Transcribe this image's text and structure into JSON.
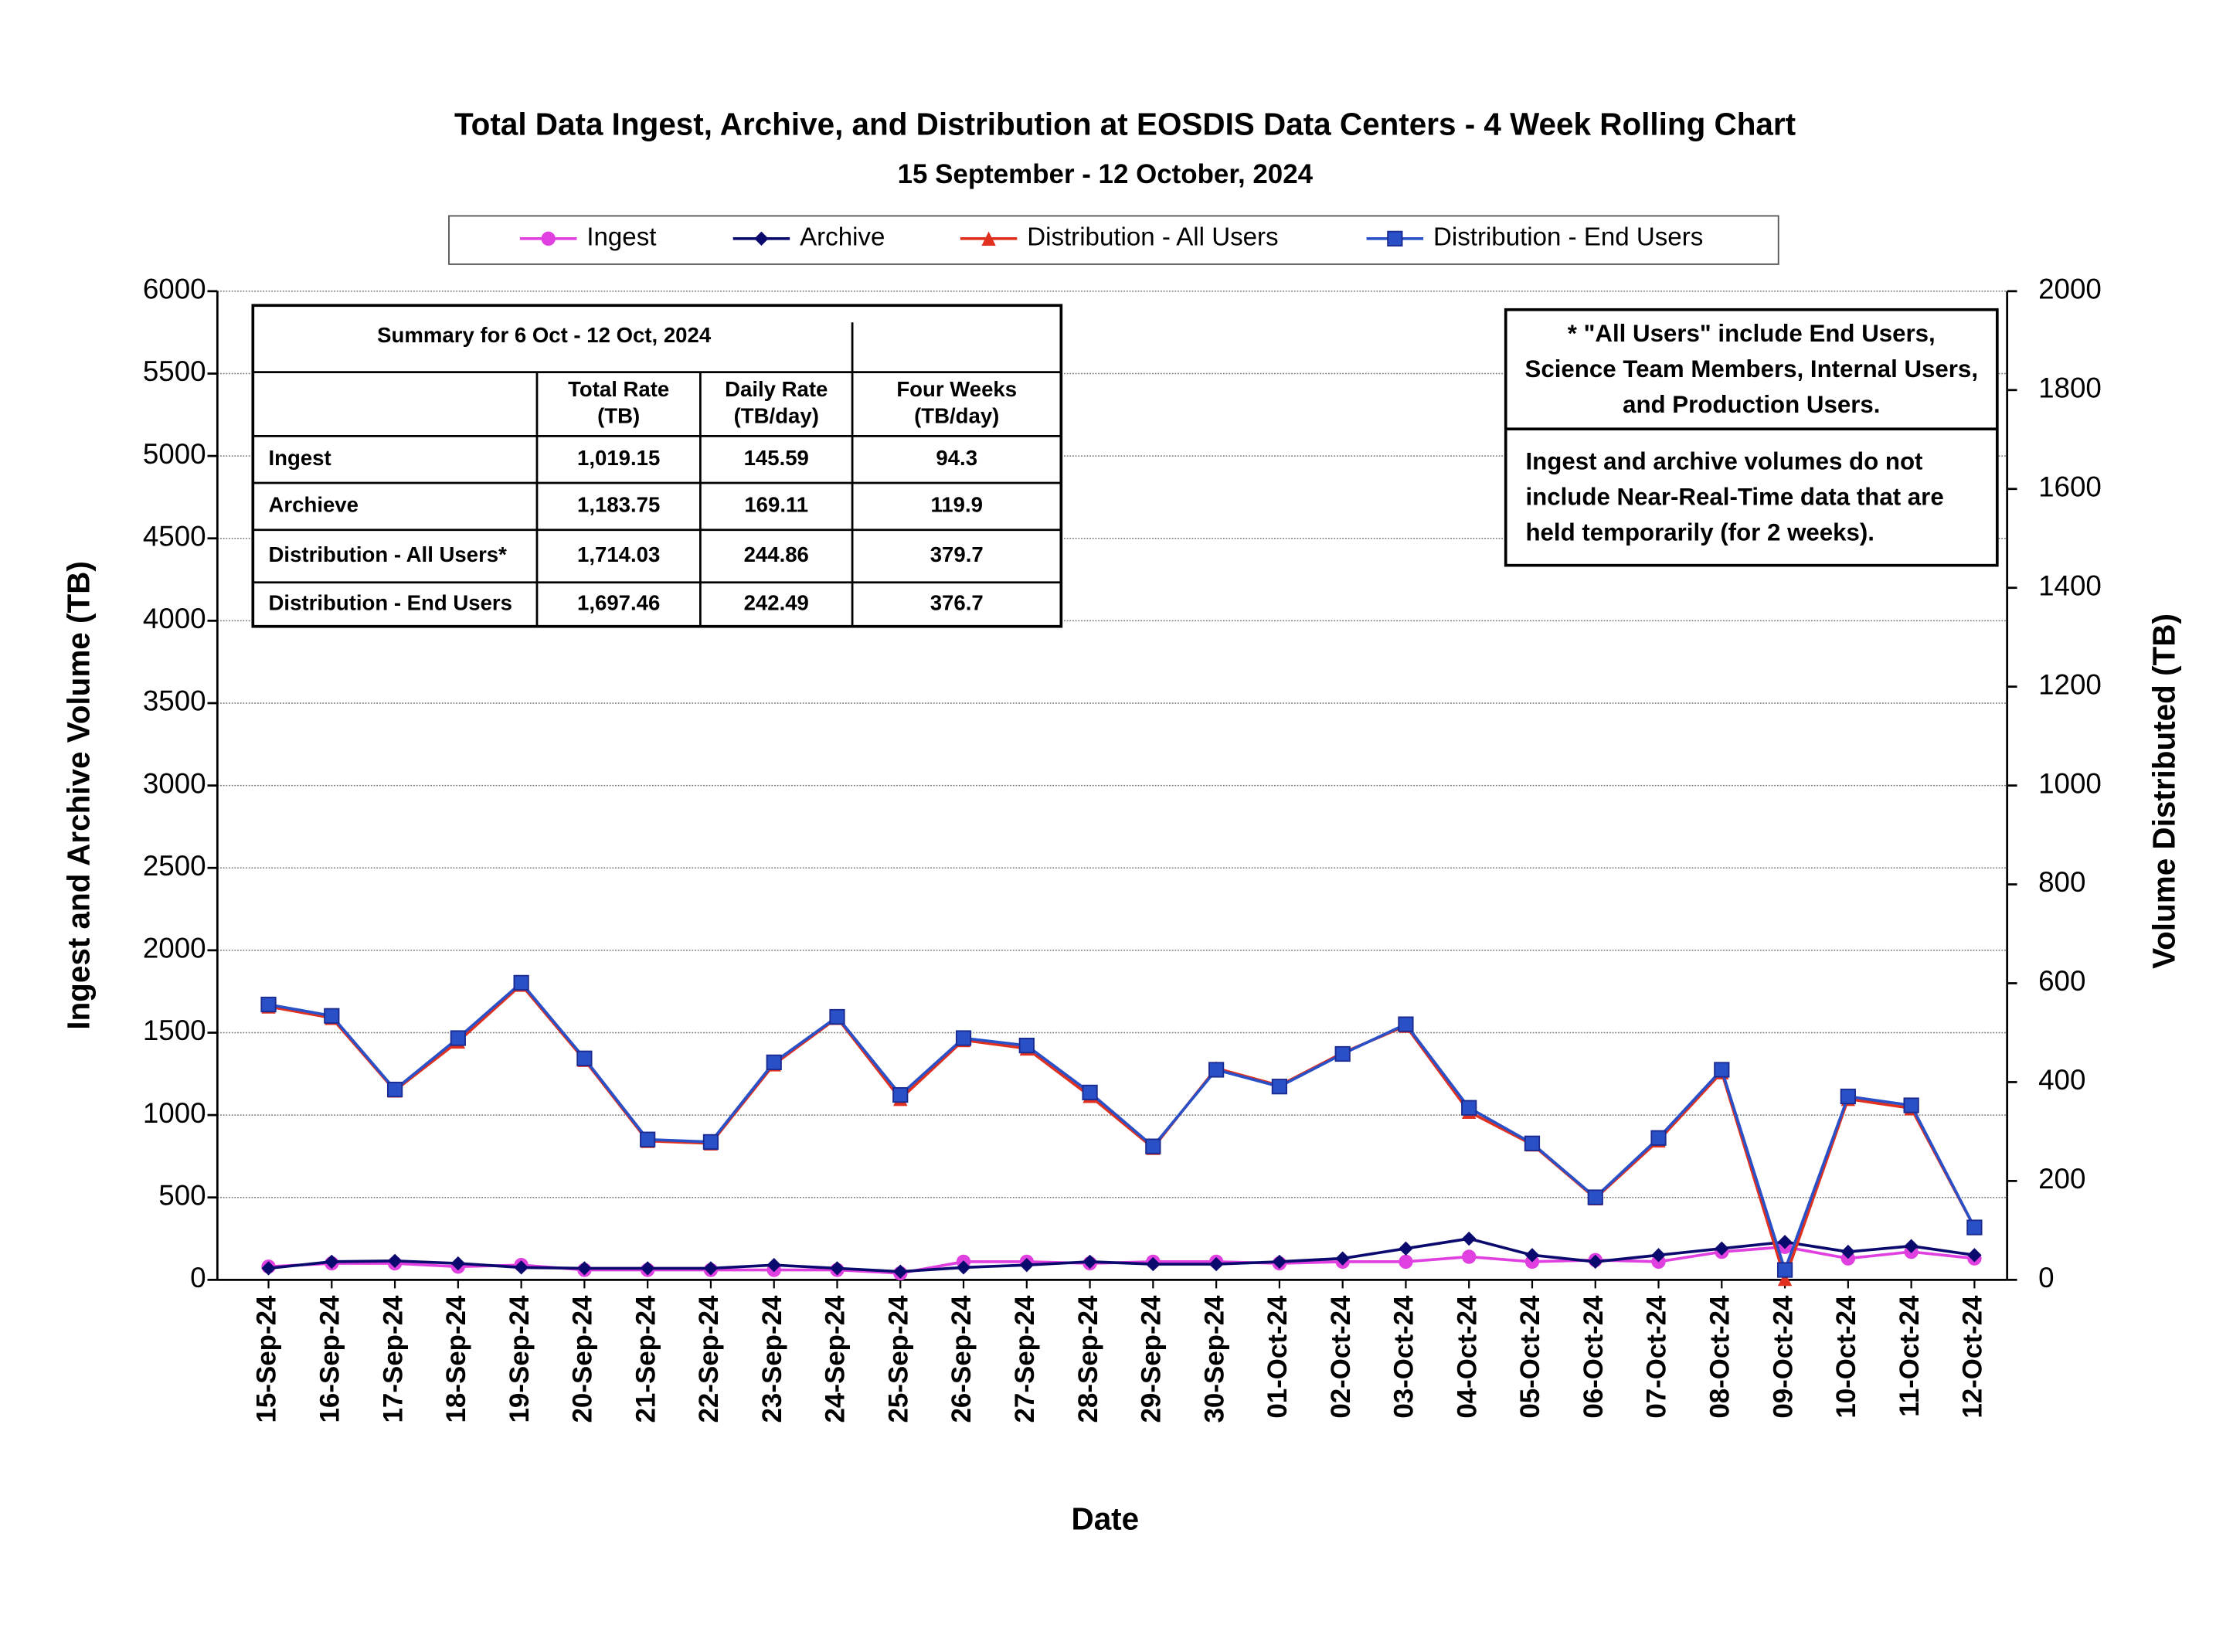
{
  "chart_data": {
    "type": "line",
    "title": "Total Data Ingest, Archive, and Distribution at EOSDIS Data Centers - 4 Week Rolling Chart",
    "subtitle": "15 September - 12 October, 2024",
    "x_label": "Date",
    "y_label": "Ingest and Archive Volume (TB)",
    "y2_label": "Volume Distributed (TB)",
    "categories": [
      "15-Sep-24",
      "16-Sep-24",
      "17-Sep-24",
      "18-Sep-24",
      "19-Sep-24",
      "20-Sep-24",
      "21-Sep-24",
      "22-Sep-24",
      "23-Sep-24",
      "24-Sep-24",
      "25-Sep-24",
      "26-Sep-24",
      "27-Sep-24",
      "28-Sep-24",
      "29-Sep-24",
      "30-Sep-24",
      "01-Oct-24",
      "02-Oct-24",
      "03-Oct-24",
      "04-Oct-24",
      "05-Oct-24",
      "06-Oct-24",
      "07-Oct-24",
      "08-Oct-24",
      "09-Oct-24",
      "10-Oct-24",
      "11-Oct-24",
      "12-Oct-24"
    ],
    "series": [
      {
        "name": "Ingest",
        "color": "#e040e0",
        "marker": "circle",
        "values": [
          80,
          100,
          100,
          80,
          90,
          60,
          60,
          60,
          60,
          60,
          40,
          110,
          110,
          100,
          110,
          110,
          100,
          110,
          110,
          140,
          110,
          120,
          110,
          170,
          200,
          130,
          170,
          130
        ]
      },
      {
        "name": "Archive",
        "color": "#0a0a6e",
        "marker": "diamond",
        "values": [
          70,
          110,
          115,
          100,
          75,
          70,
          70,
          70,
          90,
          70,
          50,
          75,
          90,
          110,
          95,
          95,
          110,
          130,
          190,
          250,
          150,
          110,
          150,
          190,
          230,
          170,
          205,
          150
        ]
      },
      {
        "name": "Distribution - All Users",
        "color": "#e03020",
        "marker": "triangle",
        "axis": "y2",
        "values": [
          553,
          530,
          383,
          482,
          597,
          445,
          281,
          276,
          436,
          530,
          366,
          485,
          468,
          372,
          267,
          428,
          393,
          459,
          514,
          340,
          274,
          165,
          282,
          420,
          2,
          366,
          347,
          106
        ]
      },
      {
        "name": "Distribution - End Users",
        "color": "#2a50c8",
        "marker": "square",
        "axis": "y2",
        "values": [
          557,
          534,
          385,
          489,
          601,
          448,
          284,
          279,
          440,
          532,
          374,
          489,
          474,
          379,
          270,
          425,
          391,
          457,
          517,
          348,
          276,
          167,
          287,
          425,
          20,
          371,
          353,
          106
        ]
      }
    ],
    "ylim": [
      0,
      6000
    ],
    "yticks": [
      0,
      500,
      1000,
      1500,
      2000,
      2500,
      3000,
      3500,
      4000,
      4500,
      5000,
      5500,
      6000
    ],
    "y2lim": [
      0,
      2000
    ],
    "y2ticks": [
      0,
      200,
      400,
      600,
      800,
      1000,
      1200,
      1400,
      1600,
      1800,
      2000
    ],
    "grid": true,
    "legend": "top"
  },
  "summary": {
    "title": "Summary for 6 Oct - 12 Oct, 2024",
    "headers": [
      [
        "Total Rate",
        "(TB)"
      ],
      [
        "Daily Rate",
        "(TB/day)"
      ],
      [
        "Four Weeks",
        "(TB/day)"
      ]
    ],
    "rows": [
      [
        "Ingest",
        "1,019.15",
        "145.59",
        "94.3"
      ],
      [
        "Archieve",
        "1,183.75",
        "169.11",
        "119.9"
      ],
      [
        "Distribution - All Users*",
        "1,714.03",
        "244.86",
        "379.7"
      ],
      [
        "Distribution - End Users",
        "1,697.46",
        "242.49",
        "376.7"
      ]
    ]
  },
  "notes": [
    [
      "* \"All Users\" include End Users,",
      "Science Team Members, Internal Users,",
      "and Production Users."
    ],
    [
      "Ingest and archive volumes do not",
      "include Near-Real-Time data that are",
      "held temporarily (for 2 weeks)."
    ]
  ]
}
